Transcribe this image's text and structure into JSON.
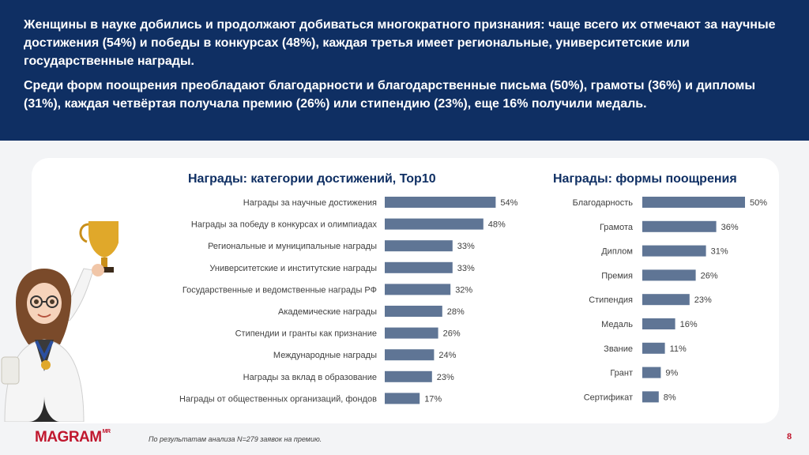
{
  "header": {
    "paragraph1": "Женщины в науке добились и продолжают добиваться многократного признания: чаще всего их отмечают за научные достижения (54%) и победы в конкурсах (48%), каждая третья имеет региональные, университетские или государственные награды.",
    "paragraph2": "Среди форм поощрения преобладают благодарности и благодарственные письма (50%), грамоты (36%) и дипломы (31%), каждая четвёртая получала премию (26%) или стипендию (23%), еще 16% получили медаль."
  },
  "chart_data": [
    {
      "type": "bar",
      "orientation": "horizontal",
      "title": "Награды: категории достижений, Top10",
      "categories": [
        "Награды за научные достижения",
        "Награды за победу в конкурсах и олимпиадах",
        "Региональные и муниципальные награды",
        "Университетские и институтские награды",
        "Государственные и ведомственные награды РФ",
        "Академические награды",
        "Стипендии и гранты как признание",
        "Международные награды",
        "Награды за вклад в образование",
        "Награды от общественных организаций, фондов"
      ],
      "values": [
        54,
        48,
        33,
        33,
        32,
        28,
        26,
        24,
        23,
        17
      ],
      "value_labels": [
        "54%",
        "48%",
        "33%",
        "33%",
        "32%",
        "28%",
        "26%",
        "24%",
        "23%",
        "17%"
      ],
      "bar_color": "#5f7595"
    },
    {
      "type": "bar",
      "orientation": "horizontal",
      "title": "Награды: формы поощрения",
      "categories": [
        "Благодарность",
        "Грамота",
        "Диплом",
        "Премия",
        "Стипендия",
        "Медаль",
        "Звание",
        "Грант",
        "Сертификат"
      ],
      "values": [
        50,
        36,
        31,
        26,
        23,
        16,
        11,
        9,
        8
      ],
      "value_labels": [
        "50%",
        "36%",
        "31%",
        "26%",
        "23%",
        "16%",
        "11%",
        "9%",
        "8%"
      ],
      "bar_color": "#5f7595"
    }
  ],
  "footer": {
    "logo": "MAGRAM",
    "logo_sup": "MR",
    "note": "По результатам анализа N=279 заявок на премию.",
    "page_number": "8"
  },
  "colors": {
    "header_bg": "#0f2f63",
    "accent_red": "#c0172e",
    "bar": "#5f7595"
  }
}
